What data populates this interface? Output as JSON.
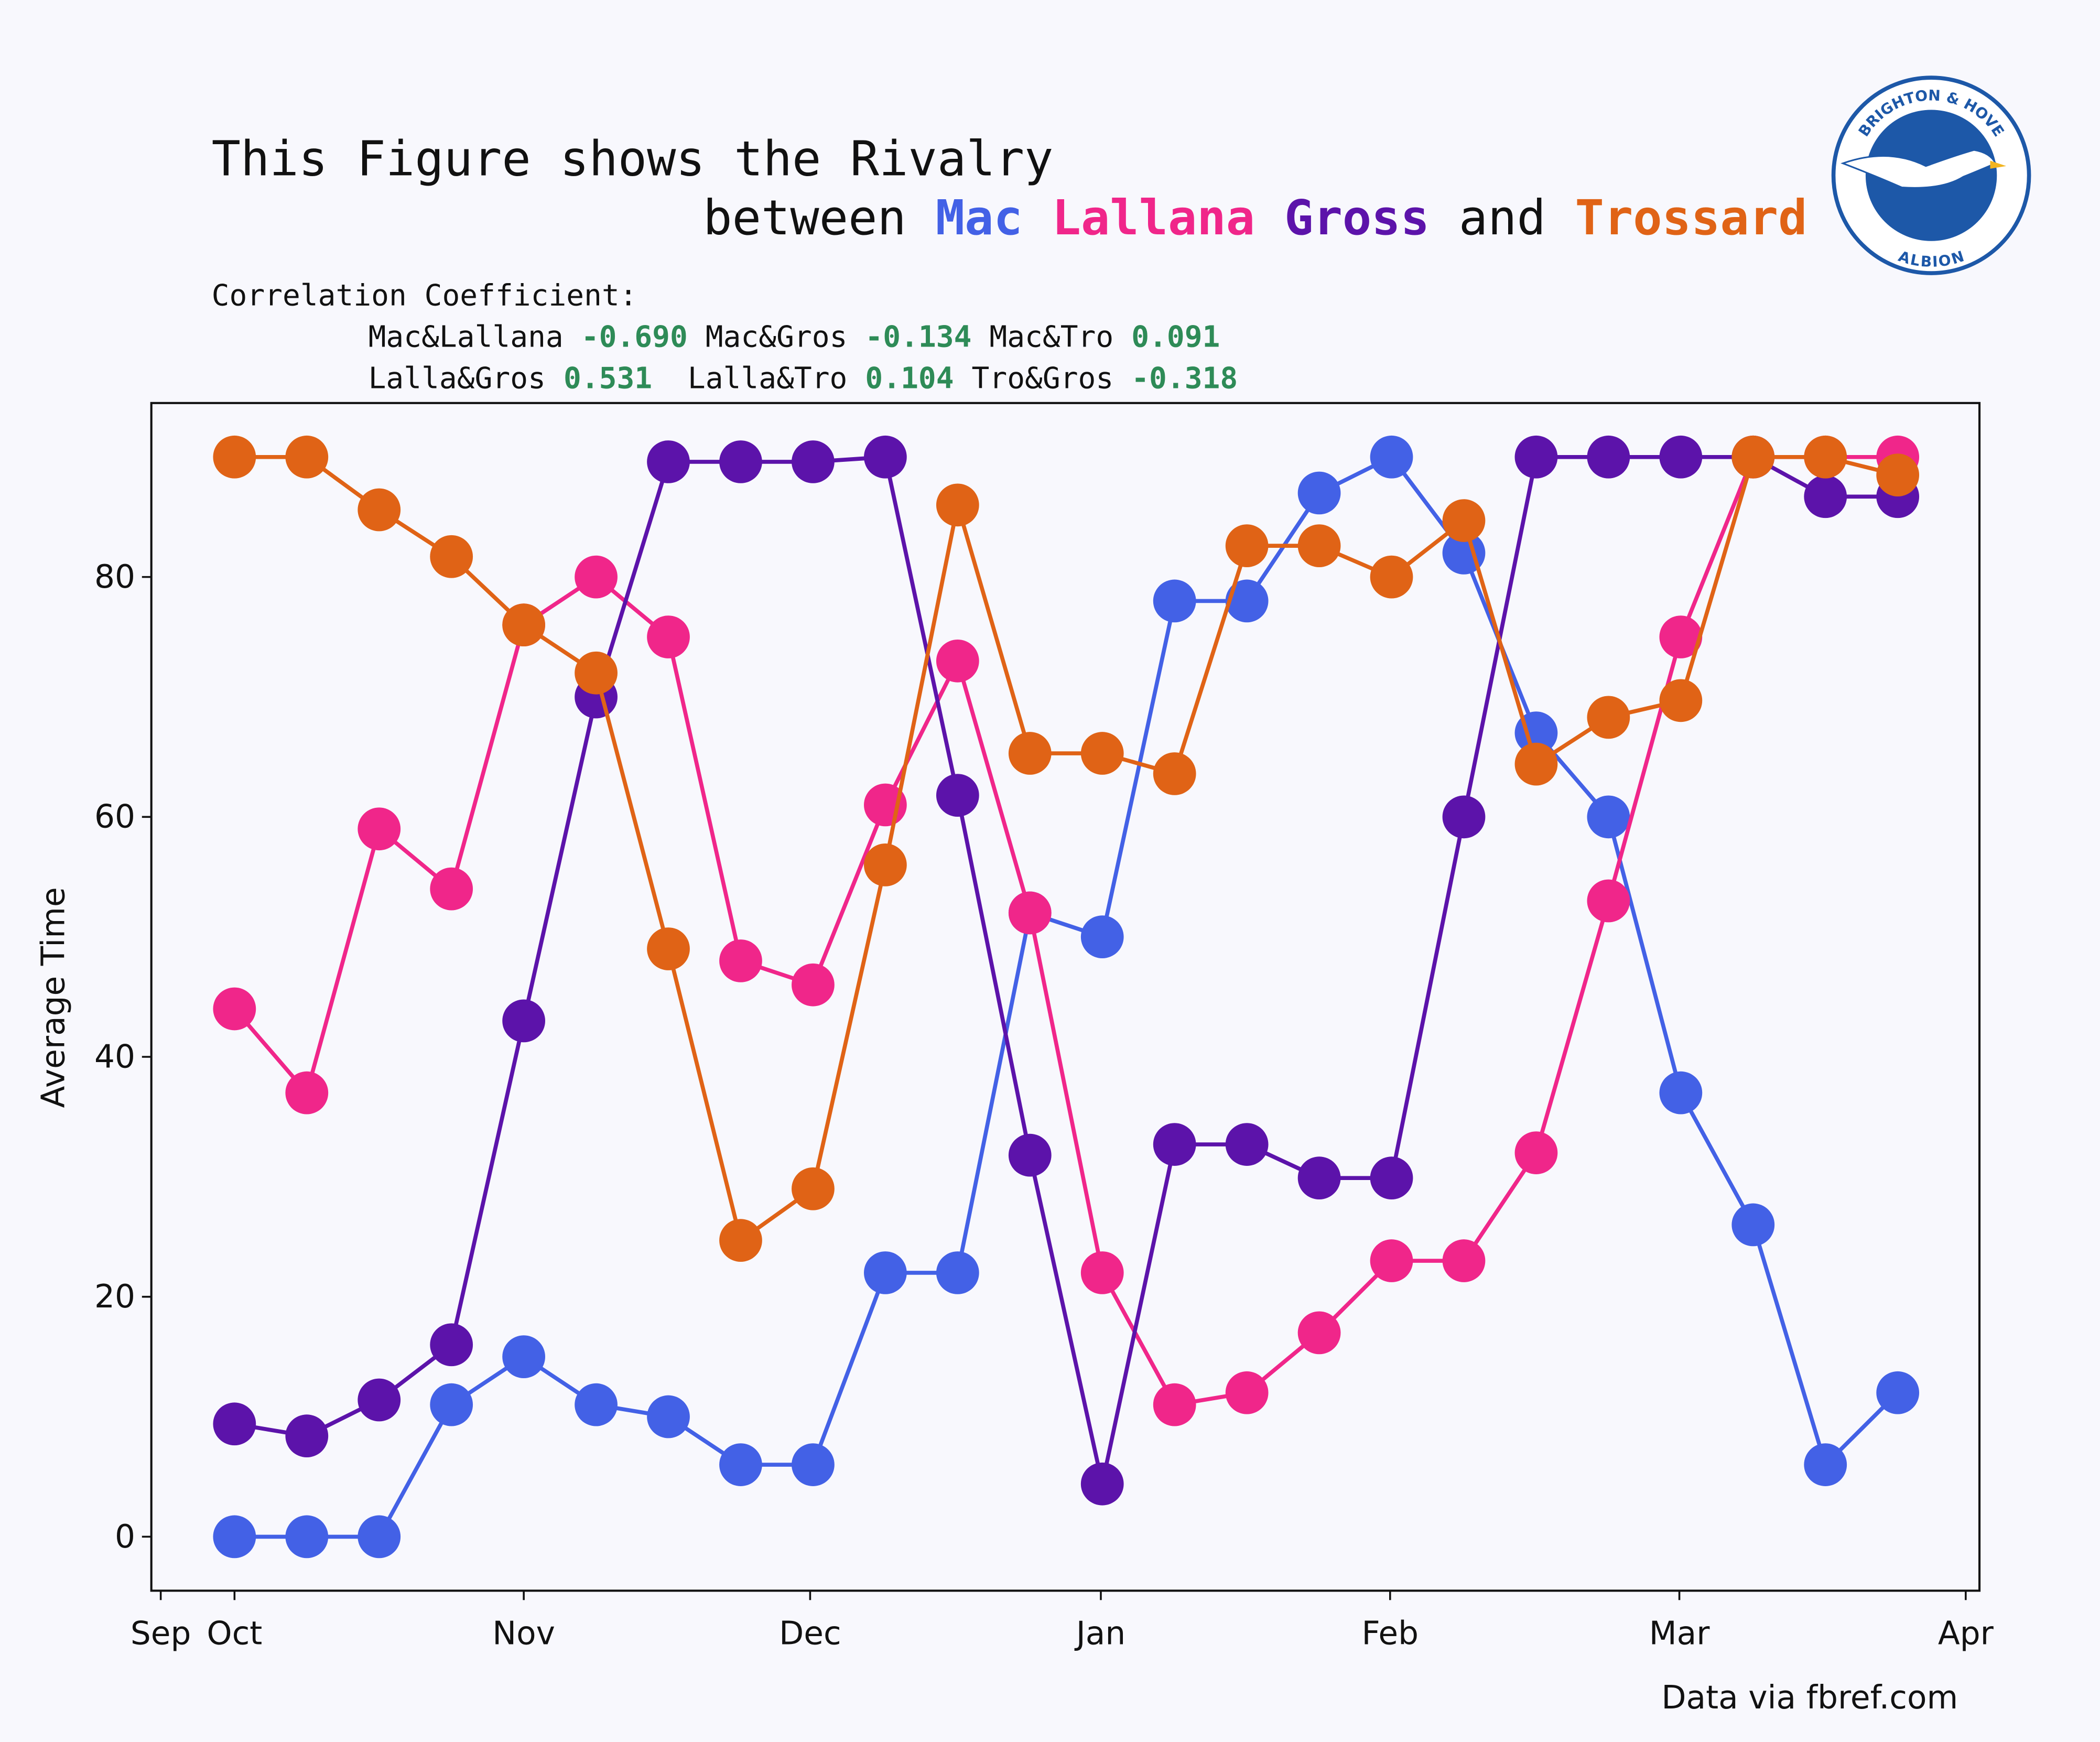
{
  "chart_data": {
    "type": "line",
    "title": "This Figure shows the Rivalry",
    "title_connectors": [
      "between",
      "and"
    ],
    "correlation_title": "Correlation Coefficient:",
    "correlations": {
      "labels": [
        "Mac&Lallana",
        "Mac&Gros",
        "Mac&Tro",
        "Lalla&Gros",
        "Lalla&Tro",
        "Tro&Gros"
      ],
      "values": [
        -0.69,
        -0.134,
        0.091,
        0.531,
        0.104,
        -0.318
      ],
      "value_labels": [
        "-0.690",
        "-0.134",
        "0.091",
        "0.531",
        "0.104",
        "-0.318"
      ],
      "color": "#2e8b57"
    },
    "y_label": "Average Time",
    "source": "Data via fbref.com",
    "logo": {
      "top": "BRIGHTON & HOVE",
      "bottom": "ALBION"
    },
    "x": [
      0,
      1,
      2,
      3,
      4,
      5,
      6,
      7,
      8,
      9,
      10,
      11,
      12,
      13,
      14,
      15,
      16,
      17,
      18,
      19,
      20,
      21,
      22,
      23
    ],
    "xlim": [
      -1.15,
      24.13
    ],
    "xticks": [
      {
        "value": -1.02,
        "label": "Sep"
      },
      {
        "value": 0,
        "label": "Oct"
      },
      {
        "value": 4,
        "label": "Nov"
      },
      {
        "value": 7.96,
        "label": "Dec"
      },
      {
        "value": 11.98,
        "label": "Jan"
      },
      {
        "value": 15.98,
        "label": "Feb"
      },
      {
        "value": 19.98,
        "label": "Mar"
      },
      {
        "value": 23.94,
        "label": "Apr"
      }
    ],
    "ylim": [
      -4.5,
      94.5
    ],
    "yticks": [
      0,
      20,
      40,
      60,
      80
    ],
    "series": [
      {
        "name": "Mac",
        "color": "#4361e6",
        "values": [
          0,
          0,
          0,
          11,
          15,
          11,
          10,
          6,
          6,
          22,
          22,
          52,
          50,
          78,
          78,
          87,
          90,
          82,
          67,
          60,
          37,
          26,
          6,
          12
        ]
      },
      {
        "name": "Lallana",
        "color": "#f0268a",
        "values": [
          44,
          37,
          59,
          54,
          76,
          80,
          75,
          48,
          46,
          61,
          73,
          52,
          22,
          11,
          12,
          17,
          23,
          23,
          32,
          53,
          75,
          90,
          90,
          90
        ]
      },
      {
        "name": "Gross",
        "color": "#5c13aa",
        "values": [
          9.4,
          8.4,
          11.4,
          16,
          43,
          70,
          89.6,
          89.6,
          89.6,
          90,
          61.8,
          31.8,
          4.4,
          32.7,
          32.7,
          29.9,
          29.9,
          60,
          90,
          90,
          90,
          90,
          86.7,
          86.7
        ]
      },
      {
        "name": "Trossard",
        "color": "#e06316",
        "values": [
          90,
          90,
          85.6,
          81.7,
          76,
          72,
          49,
          24.7,
          29,
          56,
          86,
          65.3,
          65.3,
          63.6,
          82.6,
          82.6,
          80,
          84.7,
          64.4,
          68.3,
          69.7,
          90,
          90,
          88.5
        ]
      }
    ]
  }
}
